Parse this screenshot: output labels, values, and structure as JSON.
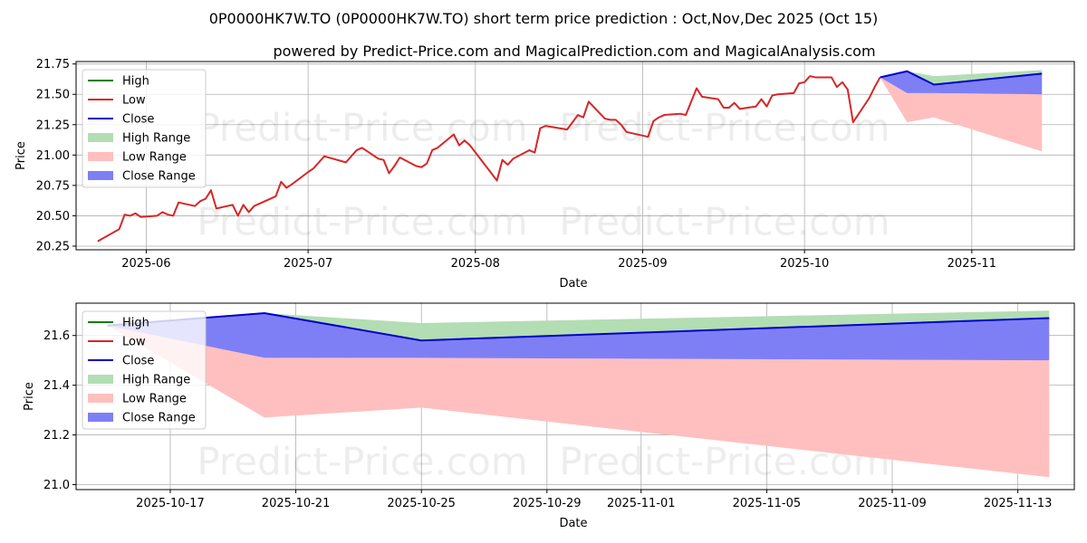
{
  "title_line1": "0P0000HK7W.TO (0P0000HK7W.TO) short term price prediction : Oct,Nov,Dec 2025 (Oct 15)",
  "title_line2": "powered by Predict-Price.com and MagicalPrediction.com and MagicalAnalysis.com",
  "watermark": "Predict-Price.com",
  "colors": {
    "high": "#008000",
    "low": "#d62728",
    "close": "#0000cc",
    "high_range": "#b3ddb3",
    "low_range": "#ffbfbf",
    "close_range": "#7f7ff5"
  },
  "chart_data": [
    {
      "type": "line",
      "name": "history-and-forecast",
      "xlabel": "Date",
      "ylabel": "Price",
      "ylim": [
        20.22,
        21.77
      ],
      "yticks": [
        20.25,
        20.5,
        20.75,
        21.0,
        21.25,
        21.5,
        21.75
      ],
      "ytick_labels": [
        "20.25",
        "20.50",
        "20.75",
        "21.00",
        "21.25",
        "21.50",
        "21.75"
      ],
      "xrange": [
        "2025-05-19",
        "2025-11-20"
      ],
      "xticks": [
        "2025-06-01",
        "2025-07-01",
        "2025-08-01",
        "2025-09-01",
        "2025-10-01",
        "2025-11-01"
      ],
      "xtick_labels": [
        "2025-06",
        "2025-07",
        "2025-08",
        "2025-09",
        "2025-10",
        "2025-11"
      ],
      "grid": true,
      "legend_position": "top-left",
      "legend": [
        "High",
        "Low",
        "Close",
        "High Range",
        "Low Range",
        "Close Range"
      ],
      "history": {
        "name": "Low",
        "dates": [
          "2025-05-23",
          "2025-05-27",
          "2025-05-28",
          "2025-05-29",
          "2025-05-30",
          "2025-05-31",
          "2025-06-03",
          "2025-06-04",
          "2025-06-05",
          "2025-06-06",
          "2025-06-07",
          "2025-06-10",
          "2025-06-11",
          "2025-06-12",
          "2025-06-13",
          "2025-06-14",
          "2025-06-17",
          "2025-06-18",
          "2025-06-19",
          "2025-06-20",
          "2025-06-21",
          "2025-06-25",
          "2025-06-26",
          "2025-06-27",
          "2025-06-28",
          "2025-07-01",
          "2025-07-02",
          "2025-07-03",
          "2025-07-04",
          "2025-07-08",
          "2025-07-09",
          "2025-07-10",
          "2025-07-11",
          "2025-07-14",
          "2025-07-15",
          "2025-07-16",
          "2025-07-17",
          "2025-07-18",
          "2025-07-21",
          "2025-07-22",
          "2025-07-23",
          "2025-07-24",
          "2025-07-25",
          "2025-07-28",
          "2025-07-29",
          "2025-07-30",
          "2025-07-31",
          "2025-08-05",
          "2025-08-06",
          "2025-08-07",
          "2025-08-08",
          "2025-08-11",
          "2025-08-12",
          "2025-08-13",
          "2025-08-14",
          "2025-08-18",
          "2025-08-19",
          "2025-08-20",
          "2025-08-21",
          "2025-08-22",
          "2025-08-25",
          "2025-08-26",
          "2025-08-27",
          "2025-08-28",
          "2025-08-29",
          "2025-09-02",
          "2025-09-03",
          "2025-09-04",
          "2025-09-05",
          "2025-09-08",
          "2025-09-09",
          "2025-09-10",
          "2025-09-11",
          "2025-09-12",
          "2025-09-15",
          "2025-09-16",
          "2025-09-17",
          "2025-09-18",
          "2025-09-19",
          "2025-09-22",
          "2025-09-23",
          "2025-09-24",
          "2025-09-25",
          "2025-09-26",
          "2025-09-29",
          "2025-09-30",
          "2025-10-01",
          "2025-10-02",
          "2025-10-03",
          "2025-10-06",
          "2025-10-07",
          "2025-10-08",
          "2025-10-09",
          "2025-10-10",
          "2025-10-13",
          "2025-10-14",
          "2025-10-15"
        ],
        "values": [
          20.29,
          20.39,
          20.51,
          20.5,
          20.52,
          20.49,
          20.5,
          20.53,
          20.51,
          20.5,
          20.61,
          20.58,
          20.62,
          20.64,
          20.71,
          20.56,
          20.59,
          20.5,
          20.59,
          20.53,
          20.58,
          20.66,
          20.78,
          20.73,
          20.76,
          20.86,
          20.89,
          20.94,
          20.99,
          20.94,
          20.99,
          21.04,
          21.06,
          20.97,
          20.96,
          20.85,
          20.91,
          20.98,
          20.91,
          20.9,
          20.93,
          21.04,
          21.06,
          21.17,
          21.08,
          21.12,
          21.08,
          20.79,
          20.96,
          20.92,
          20.97,
          21.04,
          21.02,
          21.22,
          21.24,
          21.21,
          21.27,
          21.33,
          21.31,
          21.44,
          21.3,
          21.29,
          21.29,
          21.25,
          21.19,
          21.15,
          21.28,
          21.31,
          21.33,
          21.34,
          21.33,
          21.44,
          21.55,
          21.48,
          21.46,
          21.39,
          21.39,
          21.43,
          21.38,
          21.4,
          21.46,
          21.4,
          21.49,
          21.5,
          21.51,
          21.59,
          21.6,
          21.65,
          21.64,
          21.64,
          21.56,
          21.6,
          21.54,
          21.27,
          21.47,
          21.56,
          21.64
        ]
      },
      "forecast": {
        "dates": [
          "2025-10-15",
          "2025-10-20",
          "2025-10-25",
          "2025-11-14"
        ],
        "close": [
          21.64,
          21.69,
          21.58,
          21.67
        ],
        "high_range_upper": [
          21.64,
          21.69,
          21.65,
          21.7
        ],
        "close_range_lower": [
          21.64,
          21.51,
          21.51,
          21.5
        ],
        "low_range_lower": [
          21.64,
          21.27,
          21.31,
          21.03
        ]
      }
    },
    {
      "type": "line",
      "name": "forecast-zoom",
      "xlabel": "Date",
      "ylabel": "Price",
      "ylim": [
        20.98,
        21.73
      ],
      "yticks": [
        21.0,
        21.2,
        21.4,
        21.6
      ],
      "ytick_labels": [
        "21.0",
        "21.2",
        "21.4",
        "21.6"
      ],
      "xrange": [
        "2025-10-14",
        "2025-11-14.8"
      ],
      "xticks": [
        "2025-10-17",
        "2025-10-21",
        "2025-10-25",
        "2025-10-29",
        "2025-11-01",
        "2025-11-05",
        "2025-11-09",
        "2025-11-13"
      ],
      "xtick_labels": [
        "2025-10-17",
        "2025-10-21",
        "2025-10-25",
        "2025-10-29",
        "2025-11-01",
        "2025-11-05",
        "2025-11-09",
        "2025-11-13"
      ],
      "grid": true,
      "legend_position": "top-left",
      "legend": [
        "High",
        "Low",
        "Close",
        "High Range",
        "Low Range",
        "Close Range"
      ],
      "forecast": {
        "dates": [
          "2025-10-15",
          "2025-10-20",
          "2025-10-25",
          "2025-11-14"
        ],
        "close": [
          21.64,
          21.69,
          21.58,
          21.67
        ],
        "high_range_upper": [
          21.64,
          21.69,
          21.65,
          21.7
        ],
        "close_range_lower": [
          21.64,
          21.51,
          21.51,
          21.5
        ],
        "low_range_lower": [
          21.64,
          21.27,
          21.31,
          21.03
        ]
      }
    }
  ]
}
